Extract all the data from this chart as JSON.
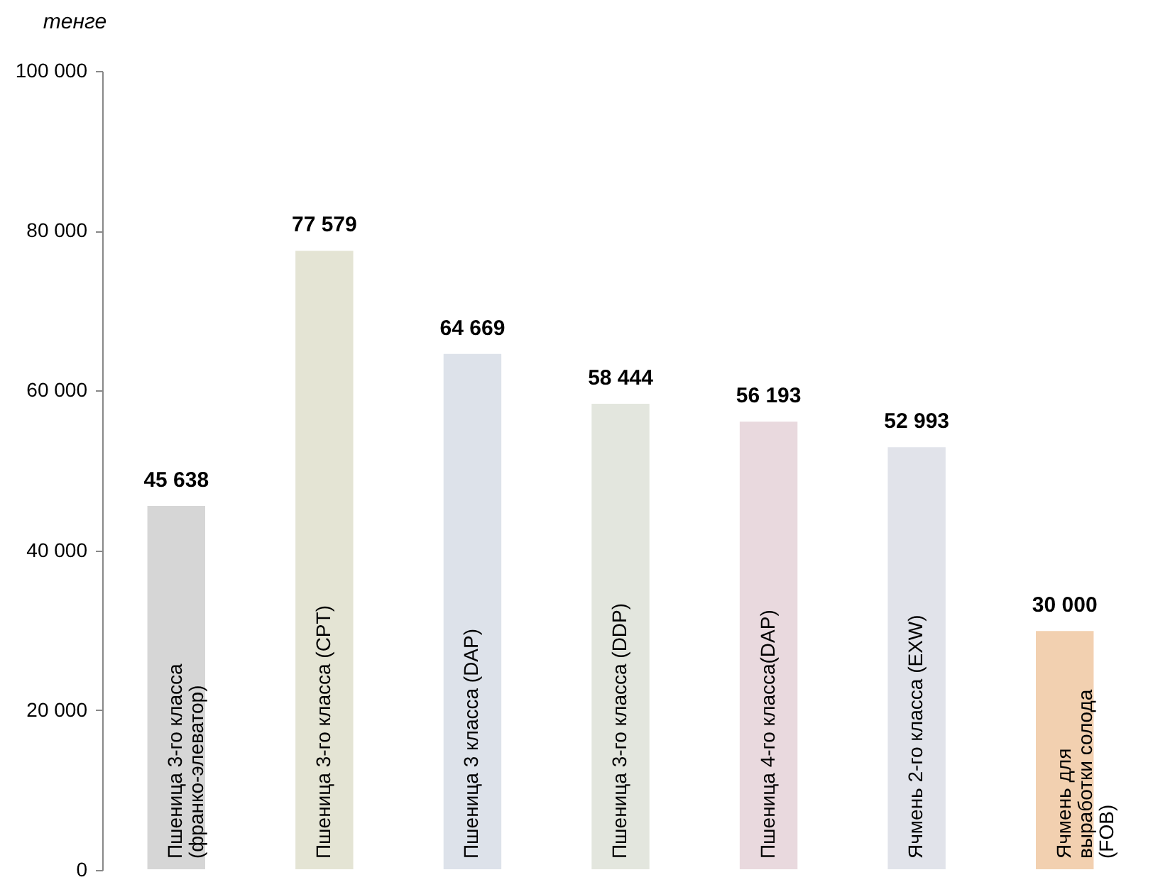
{
  "chart_data": {
    "type": "bar",
    "ylabel": "тенге",
    "categories": [
      "Пшеница  3-го класса\n(франко-элеватор)",
      "Пшеница  3-го класса (CPT)",
      "Пшеница 3 класса (DAP)",
      "Пшеница  3-го класса (DDP)",
      "Пшеница 4-го класса(DAP)",
      "Ячмень  2-го класса (EXW)",
      "Ячмень  для\nвыработки солода\n(FOB)"
    ],
    "values": [
      45638,
      77579,
      64669,
      58444,
      56193,
      52993,
      30000
    ],
    "value_labels": [
      "45 638",
      "77 579",
      "64 669",
      "58 444",
      "56 193",
      "52 993",
      "30 000"
    ],
    "colors": [
      "#d6d6d6",
      "#e4e4d4",
      "#dde2ea",
      "#e3e6de",
      "#e9d9de",
      "#e1e3ea",
      "#f2d0b0"
    ],
    "ylim": [
      0,
      100000
    ],
    "yticks": [
      {
        "value": 0,
        "label": "0"
      },
      {
        "value": 20000,
        "label": "20 000"
      },
      {
        "value": 40000,
        "label": "40 000"
      },
      {
        "value": 60000,
        "label": "60 000"
      },
      {
        "value": 80000,
        "label": "80 000"
      },
      {
        "value": 100000,
        "label": "100 000"
      }
    ],
    "tick_labels": "y",
    "grid": false
  }
}
